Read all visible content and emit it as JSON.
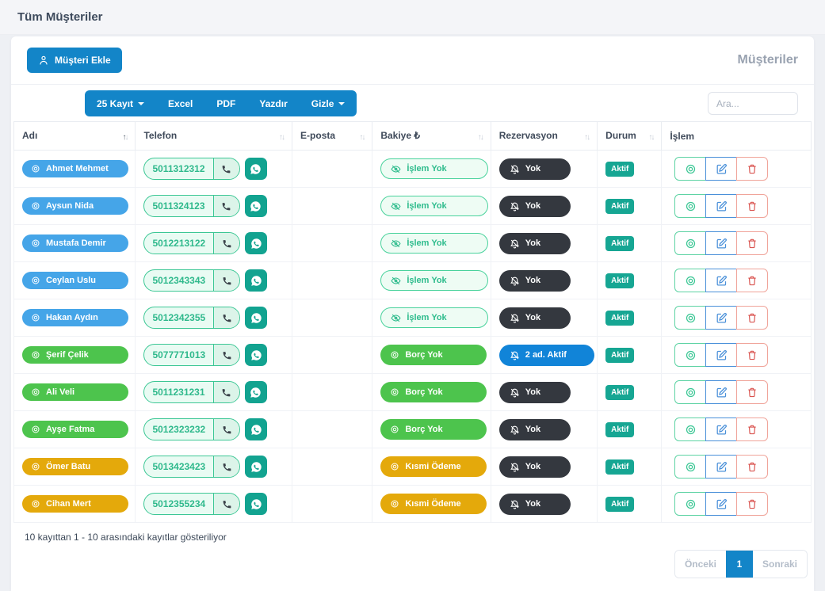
{
  "page": {
    "title": "Tüm Müşteriler"
  },
  "card": {
    "add_button_label": "Müşteri Ekle",
    "breadcrumb": "Müşteriler"
  },
  "toolbar": {
    "records_label": "25 Kayıt",
    "excel_label": "Excel",
    "pdf_label": "PDF",
    "print_label": "Yazdır",
    "hide_label": "Gizle",
    "search_placeholder": "Ara..."
  },
  "table": {
    "headers": [
      {
        "key": "adi",
        "label": "Adı",
        "sortable": true,
        "sorted": "asc"
      },
      {
        "key": "telefon",
        "label": "Telefon",
        "sortable": true
      },
      {
        "key": "eposta",
        "label": "E-posta",
        "sortable": true
      },
      {
        "key": "bakiye",
        "label": "Bakiye ₺",
        "sortable": true
      },
      {
        "key": "rezervasyon",
        "label": "Rezervasyon",
        "sortable": true
      },
      {
        "key": "durum",
        "label": "Durum",
        "sortable": true
      },
      {
        "key": "islem",
        "label": "İşlem",
        "sortable": false
      }
    ],
    "rows": [
      {
        "name": "Ahmet Mehmet",
        "color": "blue",
        "phone": "5011312312",
        "email": "",
        "balance": "İşlem Yok",
        "balance_style": "outline",
        "reservation": "Yok",
        "reservation_style": "dark",
        "status": "Aktif"
      },
      {
        "name": "Aysun Nida",
        "color": "blue",
        "phone": "5011324123",
        "email": "",
        "balance": "İşlem Yok",
        "balance_style": "outline",
        "reservation": "Yok",
        "reservation_style": "dark",
        "status": "Aktif"
      },
      {
        "name": "Mustafa Demir",
        "color": "blue",
        "phone": "5012213122",
        "email": "",
        "balance": "İşlem Yok",
        "balance_style": "outline",
        "reservation": "Yok",
        "reservation_style": "dark",
        "status": "Aktif"
      },
      {
        "name": "Ceylan Uslu",
        "color": "blue",
        "phone": "5012343343",
        "email": "",
        "balance": "İşlem Yok",
        "balance_style": "outline",
        "reservation": "Yok",
        "reservation_style": "dark",
        "status": "Aktif"
      },
      {
        "name": "Hakan Aydın",
        "color": "blue",
        "phone": "5012342355",
        "email": "",
        "balance": "İşlem Yok",
        "balance_style": "outline",
        "reservation": "Yok",
        "reservation_style": "dark",
        "status": "Aktif"
      },
      {
        "name": "Şerif Çelik",
        "color": "green",
        "phone": "5077771013",
        "email": "",
        "balance": "Borç Yok",
        "balance_style": "green",
        "reservation": "2 ad. Aktif",
        "reservation_style": "blue",
        "status": "Aktif"
      },
      {
        "name": "Ali Veli",
        "color": "green",
        "phone": "5011231231",
        "email": "",
        "balance": "Borç Yok",
        "balance_style": "green",
        "reservation": "Yok",
        "reservation_style": "dark",
        "status": "Aktif"
      },
      {
        "name": "Ayşe Fatma",
        "color": "green",
        "phone": "5012323232",
        "email": "",
        "balance": "Borç Yok",
        "balance_style": "green",
        "reservation": "Yok",
        "reservation_style": "dark",
        "status": "Aktif"
      },
      {
        "name": "Ömer Batu",
        "color": "yellow",
        "phone": "5013423423",
        "email": "",
        "balance": "Kısmi Ödeme",
        "balance_style": "yellow",
        "reservation": "Yok",
        "reservation_style": "dark",
        "status": "Aktif"
      },
      {
        "name": "Cihan Mert",
        "color": "yellow",
        "phone": "5012355234",
        "email": "",
        "balance": "Kısmi Ödeme",
        "balance_style": "yellow",
        "reservation": "Yok",
        "reservation_style": "dark",
        "status": "Aktif"
      }
    ]
  },
  "footer": {
    "info": "10 kayıttan 1 - 10 arasındaki kayıtlar gösteriliyor"
  },
  "pagination": {
    "prev_label": "Önceki",
    "current_page": "1",
    "next_label": "Sonraki"
  },
  "colors": {
    "primary_blue": "#1385c8",
    "name_pill_blue": "#45a5e8",
    "pill_green": "#4dc44d",
    "pill_yellow": "#e4a90b",
    "status_teal": "#16a693",
    "reservation_dark": "#34383f",
    "reservation_blue": "#1184d8",
    "phone_teal_border": "#3cc795",
    "delete_red": "#d9534f"
  }
}
